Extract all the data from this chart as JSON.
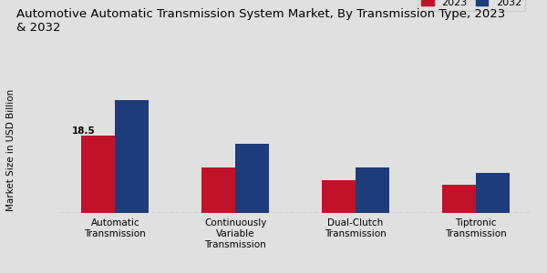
{
  "title": "Automotive Automatic Transmission System Market, By Transmission Type, 2023\n& 2032",
  "ylabel": "Market Size in USD Billion",
  "categories": [
    "Automatic\nTransmission",
    "Continuously\nVariable\nTransmission",
    "Dual-Clutch\nTransmission",
    "Tiptronic\nTransmission"
  ],
  "values_2023": [
    18.5,
    11.0,
    7.8,
    6.8
  ],
  "values_2032": [
    27.0,
    16.5,
    11.0,
    9.5
  ],
  "color_2023": "#c0132a",
  "color_2032": "#1c3d7a",
  "annotation_text": "18.5",
  "background_color": "#e0e0e0",
  "legend_2023": "2023",
  "legend_2032": "2032",
  "bar_width": 0.28,
  "ylim": [
    0,
    34
  ],
  "title_fontsize": 9.5,
  "axis_label_fontsize": 7.5,
  "tick_fontsize": 7.5,
  "legend_fontsize": 8,
  "red_strip_color": "#b00010"
}
